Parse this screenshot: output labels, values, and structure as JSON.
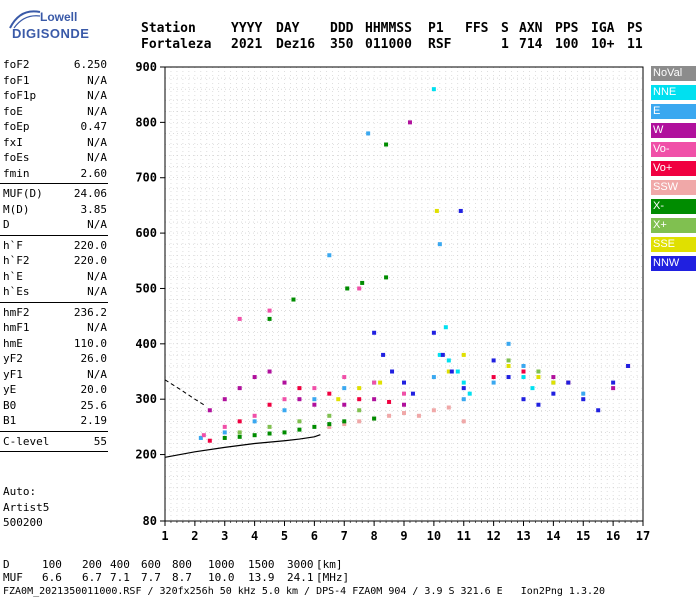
{
  "logo": {
    "line1": "Lowell",
    "line2": "DIGISONDE"
  },
  "header": {
    "labels": [
      "Station",
      "YYYY",
      "DAY",
      "DDD",
      "HHMMSS",
      "P1",
      "FFS",
      "S",
      "AXN",
      "PPS",
      "IGA",
      "PS"
    ],
    "values": [
      "Fortaleza",
      "2021",
      "Dez16",
      "350",
      "011000",
      "RSF",
      "1",
      "714",
      "100",
      "10+",
      "11"
    ]
  },
  "params_group1": [
    {
      "label": "foF2",
      "value": "6.250"
    },
    {
      "label": "foF1",
      "value": "N/A"
    },
    {
      "label": "foF1p",
      "value": "N/A"
    },
    {
      "label": "foE",
      "value": "N/A"
    },
    {
      "label": "foEp",
      "value": "0.47"
    },
    {
      "label": "fxI",
      "value": "N/A"
    },
    {
      "label": "foEs",
      "value": "N/A"
    },
    {
      "label": "fmin",
      "value": "2.60"
    }
  ],
  "params_group2": [
    {
      "label": "MUF(D)",
      "value": "24.06"
    },
    {
      "label": "M(D)",
      "value": "3.85"
    },
    {
      "label": "D",
      "value": "N/A"
    }
  ],
  "params_group3": [
    {
      "label": "h`F",
      "value": "220.0"
    },
    {
      "label": "h`F2",
      "value": "220.0"
    },
    {
      "label": "h`E",
      "value": "N/A"
    },
    {
      "label": "h`Es",
      "value": "N/A"
    }
  ],
  "params_group4": [
    {
      "label": "hmF2",
      "value": "236.2"
    },
    {
      "label": "hmF1",
      "value": "N/A"
    },
    {
      "label": "hmE",
      "value": "110.0"
    },
    {
      "label": "yF2",
      "value": "26.0"
    },
    {
      "label": "yF1",
      "value": "N/A"
    },
    {
      "label": "yE",
      "value": "20.0"
    },
    {
      "label": "B0",
      "value": "25.6"
    },
    {
      "label": "B1",
      "value": "2.19"
    }
  ],
  "params_group5": [
    {
      "label": "C-level",
      "value": "55"
    }
  ],
  "auto": {
    "line1": "Auto:",
    "line2": "Artist5",
    "line3": "500200"
  },
  "legend": [
    {
      "label": "NoVal",
      "color": "#8c8c8c"
    },
    {
      "label": "NNE",
      "color": "#00e0f0"
    },
    {
      "label": "E",
      "color": "#3aa8f0"
    },
    {
      "label": "W",
      "color": "#b0109c"
    },
    {
      "label": "Vo-",
      "color": "#f050a8"
    },
    {
      "label": "Vo+",
      "color": "#f00040"
    },
    {
      "label": "SSW",
      "color": "#f0a8a8"
    },
    {
      "label": "X-",
      "color": "#008c00"
    },
    {
      "label": "X+",
      "color": "#80c050"
    },
    {
      "label": "SSE",
      "color": "#e0e000"
    },
    {
      "label": "NNW",
      "color": "#2020e0"
    }
  ],
  "footer": {
    "d_label": "D",
    "d_values": [
      "100",
      "200",
      "400",
      "600",
      "800",
      "1000",
      "1500",
      "3000",
      "[km]"
    ],
    "muf_label": "MUF",
    "muf_values": [
      "6.6",
      "6.7",
      "7.1",
      "7.7",
      "8.7",
      "10.0",
      "13.9",
      "24.1",
      "[MHz]"
    ],
    "file_info": "FZA0M_2021350011000.RSF / 320fx256h 50 kHz 5.0 km / DPS-4 FZA0M 904 / 3.9 S 321.6 E   Ion2Png 1.3.20"
  },
  "chart_data": {
    "type": "scatter",
    "x_ticks": [
      "1",
      "2",
      "3",
      "4",
      "5",
      "6",
      "7",
      "8",
      "9",
      "10",
      "11",
      "12",
      "13",
      "14",
      "15",
      "16",
      "17"
    ],
    "y_ticks": [
      "80",
      "200",
      "300",
      "400",
      "500",
      "600",
      "700",
      "800",
      "900"
    ],
    "xlim": [
      1,
      17
    ],
    "ylim": [
      80,
      900
    ],
    "grid": true,
    "legend_position": "right",
    "series": [
      {
        "name": "E",
        "color": "#3aa8f0",
        "x": [
          2.2,
          3,
          4,
          5,
          6,
          7,
          8,
          10,
          11,
          12,
          13,
          14,
          15,
          7.8,
          6.5,
          10.2,
          12.5
        ],
        "y": [
          230,
          240,
          260,
          280,
          300,
          320,
          330,
          340,
          300,
          330,
          360,
          330,
          310,
          780,
          560,
          580,
          400
        ]
      },
      {
        "name": "NNE",
        "color": "#00e0f0",
        "x": [
          10.2,
          10.5,
          10.8,
          11,
          11.2,
          13,
          13.3,
          10,
          10.4
        ],
        "y": [
          380,
          370,
          350,
          330,
          310,
          340,
          320,
          860,
          430
        ]
      },
      {
        "name": "W",
        "color": "#b0109c",
        "x": [
          2.5,
          3,
          3.5,
          4,
          4.5,
          5,
          5.5,
          6,
          7,
          8,
          9,
          9.2,
          13,
          14,
          16
        ],
        "y": [
          280,
          300,
          320,
          340,
          350,
          330,
          300,
          290,
          290,
          300,
          290,
          800,
          350,
          340,
          320
        ]
      },
      {
        "name": "Vo-",
        "color": "#f050a8",
        "x": [
          2.3,
          3,
          4,
          5,
          6,
          7,
          8,
          9,
          3.5,
          4.5,
          7.5,
          16.5
        ],
        "y": [
          235,
          250,
          270,
          300,
          320,
          340,
          330,
          310,
          445,
          460,
          500,
          360
        ]
      },
      {
        "name": "Vo+",
        "color": "#f00040",
        "x": [
          2.5,
          3.5,
          4.5,
          5.5,
          6.5,
          7.5,
          8.5,
          12,
          13,
          14.5
        ],
        "y": [
          225,
          260,
          290,
          320,
          310,
          300,
          295,
          340,
          350,
          330
        ]
      },
      {
        "name": "SSW",
        "color": "#f0a8a8",
        "x": [
          6.5,
          7,
          7.5,
          8,
          8.5,
          9,
          9.5,
          10,
          10.5,
          11
        ],
        "y": [
          250,
          255,
          260,
          265,
          270,
          275,
          270,
          280,
          285,
          260
        ]
      },
      {
        "name": "X-",
        "color": "#008c00",
        "x": [
          3,
          3.5,
          4,
          4.5,
          5,
          5.5,
          6,
          6.5,
          7,
          8,
          8.4,
          4.5,
          5.3,
          7.1,
          7.6,
          8.4
        ],
        "y": [
          230,
          232,
          235,
          238,
          240,
          245,
          250,
          255,
          260,
          265,
          760,
          445,
          480,
          500,
          510,
          520
        ]
      },
      {
        "name": "X+",
        "color": "#80c050",
        "x": [
          3.5,
          4.5,
          5.5,
          6.5,
          7.5,
          12.5,
          13.5
        ],
        "y": [
          240,
          250,
          260,
          270,
          280,
          370,
          350
        ]
      },
      {
        "name": "SSE",
        "color": "#e0e000",
        "x": [
          6.8,
          7.5,
          8.2,
          10.1,
          10.5,
          11,
          12.5,
          13.5,
          14
        ],
        "y": [
          300,
          320,
          330,
          640,
          350,
          380,
          360,
          340,
          330
        ]
      },
      {
        "name": "NNW",
        "color": "#2020e0",
        "x": [
          8,
          8.3,
          8.6,
          9,
          9.3,
          10,
          10.3,
          10.6,
          11,
          12,
          12.5,
          13,
          13.5,
          14,
          14.5,
          15,
          15.5,
          16,
          16.5,
          10.9
        ],
        "y": [
          420,
          380,
          350,
          330,
          310,
          420,
          380,
          350,
          320,
          370,
          340,
          300,
          290,
          310,
          330,
          300,
          280,
          330,
          360,
          640
        ]
      }
    ],
    "profile_solid": {
      "x": [
        1,
        2,
        3,
        4,
        5,
        5.5,
        6,
        6.2
      ],
      "y": [
        195,
        205,
        213,
        220,
        225,
        228,
        232,
        236
      ]
    },
    "profile_dashed": {
      "x": [
        1,
        1.5,
        2,
        2.3
      ],
      "y": [
        335,
        318,
        300,
        290
      ]
    }
  }
}
